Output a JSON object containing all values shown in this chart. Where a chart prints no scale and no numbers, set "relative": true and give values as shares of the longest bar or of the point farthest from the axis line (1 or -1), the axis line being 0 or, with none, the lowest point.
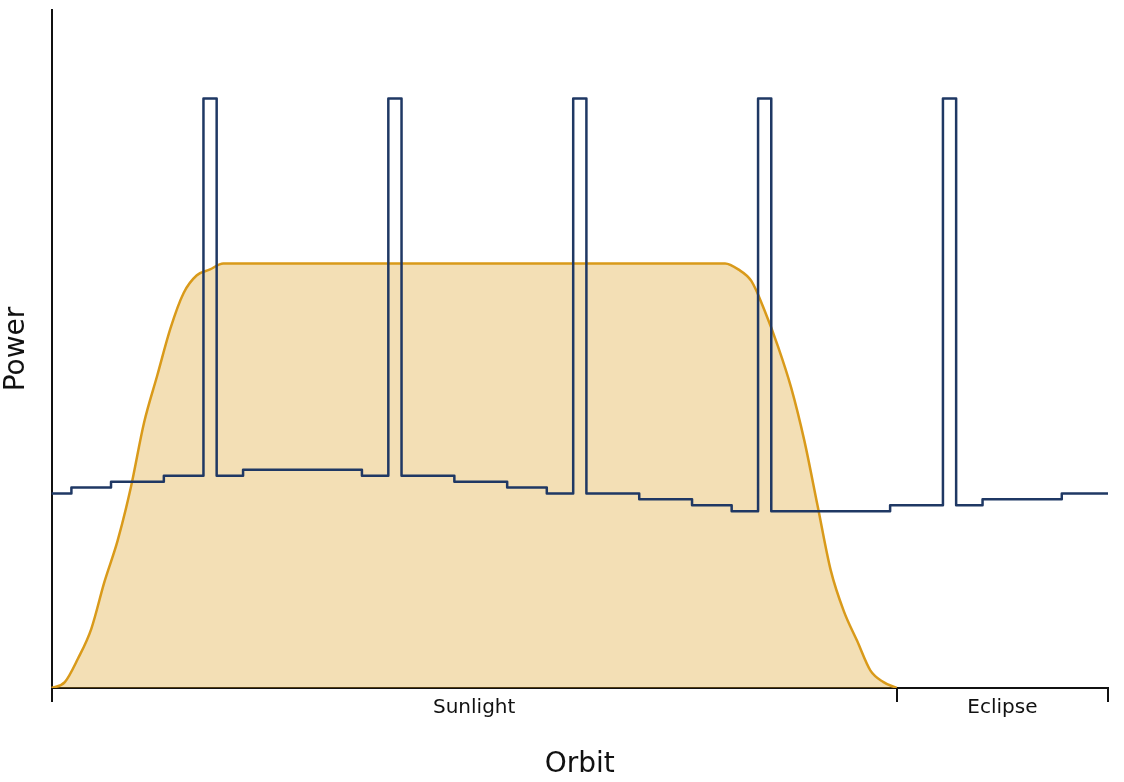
{
  "chart_data": {
    "type": "step",
    "relative": true,
    "xlabel": "Orbit",
    "ylabel": "Power",
    "grid": false,
    "legend": false,
    "marker": "none",
    "annotations": [
      "Sunlight",
      "Eclipse"
    ],
    "categories": [
      null,
      null,
      null,
      null,
      null,
      null,
      null,
      null,
      null,
      null,
      null,
      null,
      null,
      null,
      null,
      null,
      null,
      null,
      null,
      null,
      null,
      null,
      null,
      null,
      null,
      null,
      null,
      null,
      null,
      null,
      null,
      null,
      null,
      null,
      null,
      null,
      null,
      null,
      null,
      null,
      null,
      null,
      null,
      null,
      null,
      null,
      null,
      null,
      null,
      null,
      null,
      null,
      null,
      null,
      null,
      null,
      null,
      null,
      null,
      null,
      null,
      null,
      null,
      null,
      null,
      null,
      null,
      null,
      null,
      null,
      null,
      null,
      null,
      null,
      null,
      null,
      null,
      null,
      null,
      null,
      null
    ],
    "series": [
      {
        "type": "area",
        "color": "#d99a1a",
        "values": [
          0,
          0.01,
          0.05,
          0.1,
          0.18,
          0.25,
          0.34,
          0.45,
          0.53,
          0.61,
          0.67,
          0.7,
          0.71,
          0.72,
          0.72,
          0.72,
          0.72,
          0.72,
          0.72,
          0.72,
          0.72,
          0.72,
          0.72,
          0.72,
          0.72,
          0.72,
          0.72,
          0.72,
          0.72,
          0.72,
          0.72,
          0.72,
          0.72,
          0.72,
          0.72,
          0.72,
          0.72,
          0.72,
          0.72,
          0.72,
          0.72,
          0.72,
          0.72,
          0.72,
          0.72,
          0.72,
          0.72,
          0.72,
          0.72,
          0.72,
          0.72,
          0.72,
          0.71,
          0.69,
          0.64,
          0.58,
          0.51,
          0.42,
          0.31,
          0.2,
          0.13,
          0.08,
          0.03,
          0.01,
          0,
          null,
          null,
          null,
          null,
          null,
          null,
          null,
          null,
          null,
          null,
          null,
          null,
          null,
          null,
          null,
          null
        ]
      },
      {
        "color": "#1f3864",
        "values": [
          0.33,
          0.33,
          0.34,
          0.34,
          0.34,
          0.35,
          0.35,
          0.35,
          0.35,
          0.36,
          0.36,
          0.36,
          1,
          0.36,
          0.36,
          0.37,
          0.37,
          0.37,
          0.37,
          0.37,
          0.37,
          0.37,
          0.37,
          0.37,
          0.36,
          0.36,
          1,
          0.36,
          0.36,
          0.36,
          0.36,
          0.35,
          0.35,
          0.35,
          0.35,
          0.34,
          0.34,
          0.34,
          0.33,
          0.33,
          1,
          0.33,
          0.33,
          0.33,
          0.33,
          0.32,
          0.32,
          0.32,
          0.32,
          0.31,
          0.31,
          0.31,
          0.3,
          0.3,
          1,
          0.3,
          0.3,
          0.3,
          0.3,
          0.3,
          0.3,
          0.3,
          0.3,
          0.3,
          0.31,
          0.31,
          0.31,
          0.31,
          1,
          0.31,
          0.31,
          0.32,
          0.32,
          0.32,
          0.32,
          0.32,
          0.32,
          0.33,
          0.33,
          0.33,
          0.33
        ]
      }
    ]
  }
}
